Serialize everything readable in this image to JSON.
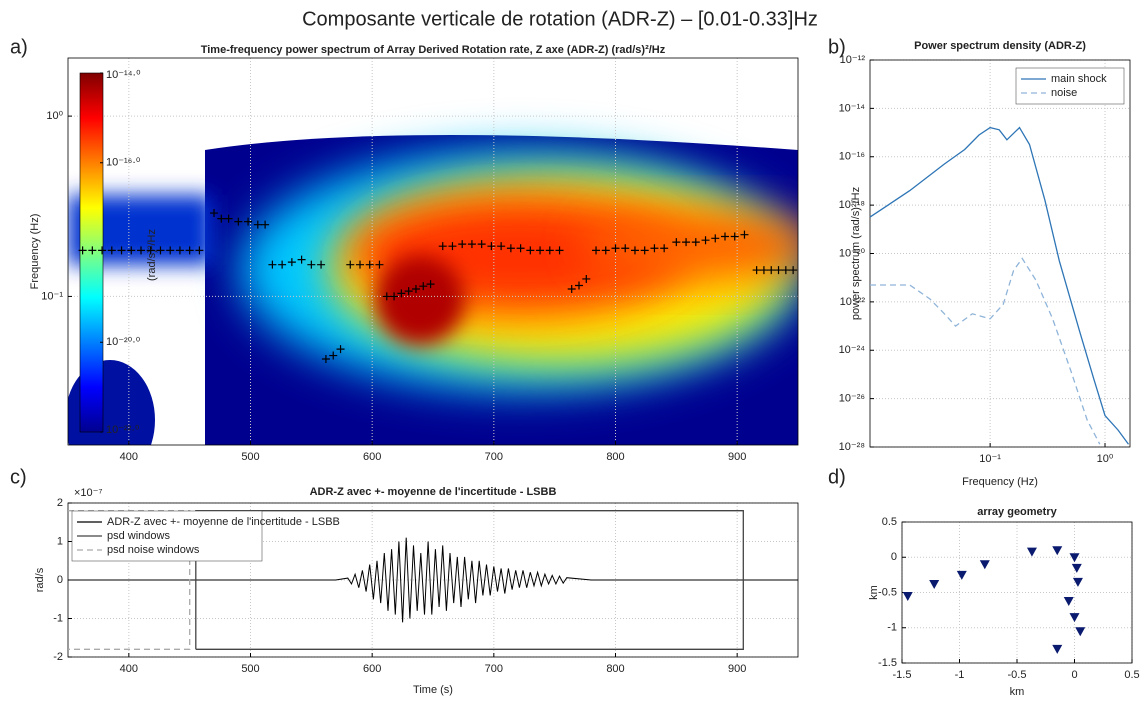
{
  "title": "Composante verticale de rotation (ADR-Z) – [0.01-0.33]Hz",
  "chart_data": [
    {
      "type": "heatmap",
      "panel_label": "a)",
      "title": "Time-frequency power spectrum of Array Derived Rotation rate, Z axe (ADR-Z) (rad/s)²/Hz",
      "ylabel": "Frequency (Hz)",
      "xlim": [
        350,
        950
      ],
      "xticks": [
        400,
        500,
        600,
        700,
        800,
        900
      ],
      "ylim": [
        0.015,
        2.1
      ],
      "ylog": true,
      "yticks": [
        {
          "value": 1,
          "label": "10⁰"
        },
        {
          "value": 0.1,
          "label": "10⁻¹"
        }
      ],
      "grid": true,
      "colorbar": {
        "label": "(rad/s)²/Hz",
        "clim": [
          1e-22,
          1e-14
        ],
        "log": true,
        "ticks": [
          {
            "value": 1e-14,
            "label": "10⁻¹⁴·⁰"
          },
          {
            "value": 1e-16,
            "label": "10⁻¹⁶·⁰"
          },
          {
            "value": 1e-20,
            "label": "10⁻²⁰·⁰"
          },
          {
            "value": 1e-22,
            "label": "10⁻²²·⁰"
          }
        ]
      },
      "series": [
        {
          "color": "#000000",
          "x": [
            362,
            370,
            378,
            386,
            394,
            402,
            410,
            418,
            426,
            434,
            442,
            450,
            458,
            470,
            476,
            482,
            490,
            498,
            506,
            512,
            518,
            526,
            534,
            542,
            550,
            558,
            562,
            568,
            574,
            582,
            590,
            598,
            606,
            612,
            618,
            624,
            630,
            636,
            642,
            648,
            658,
            666,
            674,
            682,
            690,
            698,
            706,
            714,
            722,
            730,
            738,
            746,
            754,
            764,
            770,
            776,
            784,
            792,
            800,
            808,
            816,
            824,
            832,
            840,
            850,
            858,
            866,
            874,
            882,
            890,
            898,
            906,
            916,
            922,
            928,
            934,
            940,
            946
          ],
          "values": [
            0.18,
            0.18,
            0.18,
            0.18,
            0.18,
            0.18,
            0.18,
            0.18,
            0.18,
            0.18,
            0.18,
            0.18,
            0.18,
            0.29,
            0.27,
            0.27,
            0.26,
            0.26,
            0.25,
            0.25,
            0.15,
            0.15,
            0.155,
            0.16,
            0.15,
            0.15,
            0.045,
            0.047,
            0.051,
            0.15,
            0.15,
            0.15,
            0.15,
            0.1,
            0.1,
            0.104,
            0.107,
            0.11,
            0.114,
            0.117,
            0.19,
            0.19,
            0.195,
            0.195,
            0.195,
            0.19,
            0.19,
            0.185,
            0.185,
            0.18,
            0.18,
            0.18,
            0.18,
            0.11,
            0.115,
            0.125,
            0.18,
            0.18,
            0.185,
            0.185,
            0.18,
            0.18,
            0.185,
            0.185,
            0.2,
            0.2,
            0.2,
            0.205,
            0.21,
            0.215,
            0.215,
            0.22,
            0.14,
            0.14,
            0.14,
            0.14,
            0.14,
            0.14
          ]
        }
      ]
    },
    {
      "type": "line",
      "panel_label": "b)",
      "title": "Power spectrum density (ADR-Z)",
      "xlabel": "Frequency (Hz)",
      "ylabel": "power spectrum (rad/s)²/Hz",
      "xlim": [
        0.009,
        1.65
      ],
      "xlog": true,
      "xticks": [
        {
          "value": 0.1,
          "label": "10⁻¹"
        },
        {
          "value": 1,
          "label": "10⁰"
        }
      ],
      "ylim": [
        1e-28,
        1e-12
      ],
      "ylog": true,
      "yticks": [
        {
          "value": 1e-12,
          "label": "10⁻¹²"
        },
        {
          "value": 1e-14,
          "label": "10⁻¹⁴"
        },
        {
          "value": 1e-16,
          "label": "10⁻¹⁶"
        },
        {
          "value": 1e-18,
          "label": "10⁻¹⁸"
        },
        {
          "value": 1e-20,
          "label": "10⁻²⁰"
        },
        {
          "value": 1e-22,
          "label": "10⁻²²"
        },
        {
          "value": 1e-24,
          "label": "10⁻²⁴"
        },
        {
          "value": 1e-26,
          "label": "10⁻²⁶"
        },
        {
          "value": 1e-28,
          "label": "10⁻²⁸"
        }
      ],
      "grid": true,
      "legend": "upper right",
      "series": [
        {
          "name": "main shock",
          "color": "#2e75b6",
          "linestyle": "solid",
          "x": [
            0.009,
            0.02,
            0.04,
            0.06,
            0.08,
            0.1,
            0.12,
            0.14,
            0.18,
            0.22,
            0.3,
            0.4,
            0.6,
            0.8,
            1,
            1.3,
            1.6
          ],
          "values": [
            3.2e-19,
            4e-18,
            5e-17,
            2e-16,
            7.9e-16,
            1.6e-15,
            1.3e-15,
            5e-16,
            1.6e-15,
            3.2e-16,
            1.6e-18,
            5e-21,
            6.3e-24,
            6.3e-26,
            2e-27,
            5e-28,
            1.3e-28
          ]
        },
        {
          "name": "noise",
          "color": "#8fb4d9",
          "linestyle": "dashed",
          "x": [
            0.009,
            0.02,
            0.03,
            0.04,
            0.05,
            0.07,
            0.1,
            0.13,
            0.16,
            0.19,
            0.25,
            0.35,
            0.5,
            0.7,
            0.9
          ],
          "values": [
            5e-22,
            5e-22,
            1.3e-22,
            3.2e-23,
            1e-23,
            3.2e-23,
            2e-23,
            7.9e-23,
            2e-21,
            6.3e-21,
            7.9e-22,
            2e-23,
            1.6e-25,
            1.3e-27,
            1.3e-28
          ]
        }
      ]
    },
    {
      "type": "line",
      "panel_label": "c)",
      "title": "ADR-Z avec +- moyenne de l'incertitude - LSBB",
      "xlabel": "Time (s)",
      "ylabel": "rad/s",
      "y_multiplier": "×10⁻⁷",
      "xlim": [
        350,
        950
      ],
      "xticks": [
        400,
        500,
        600,
        700,
        800,
        900
      ],
      "ylim": [
        -2e-07,
        2e-07
      ],
      "yticks": [
        {
          "value": 2e-07,
          "label": "2"
        },
        {
          "value": 1e-07,
          "label": "1"
        },
        {
          "value": 0,
          "label": "0"
        },
        {
          "value": -1e-07,
          "label": "-1"
        },
        {
          "value": -2e-07,
          "label": "-2"
        }
      ],
      "grid": true,
      "legend": "upper left",
      "series": [
        {
          "name": "ADR-Z avec +- moyenne de l'incertitude - LSBB",
          "color": "#000000",
          "linestyle": "solid",
          "x": [
            350,
            400,
            450,
            500,
            550,
            570,
            580,
            583,
            586,
            589,
            592,
            595,
            598,
            601,
            604,
            607,
            610,
            613,
            616,
            619,
            622,
            625,
            628,
            631,
            634,
            637,
            640,
            643,
            646,
            649,
            652,
            655,
            658,
            661,
            664,
            667,
            670,
            673,
            676,
            679,
            682,
            685,
            688,
            691,
            694,
            697,
            700,
            703,
            706,
            709,
            712,
            715,
            718,
            721,
            724,
            727,
            730,
            733,
            736,
            739,
            742,
            745,
            748,
            751,
            754,
            757,
            760,
            780,
            800,
            850,
            900,
            950
          ],
          "values": [
            0,
            0,
            0,
            0,
            0,
            0,
            5e-09,
            -1e-08,
            1.5e-08,
            -2e-08,
            2.5e-08,
            -3e-08,
            4e-08,
            -5e-08,
            5e-08,
            -6e-08,
            7e-08,
            -8e-08,
            8e-08,
            -9e-08,
            1e-07,
            -1.1e-07,
            1.1e-07,
            -1e-07,
            9e-08,
            -8e-08,
            7e-08,
            -9e-08,
            1e-07,
            -9e-08,
            8e-08,
            -7e-08,
            9e-08,
            -8e-08,
            7e-08,
            -6e-08,
            6e-08,
            -7e-08,
            6e-08,
            -5e-08,
            5e-08,
            -6e-08,
            5e-08,
            -4e-08,
            4e-08,
            -4e-08,
            3.5e-08,
            -3e-08,
            3e-08,
            -3.5e-08,
            3e-08,
            -2.5e-08,
            2.5e-08,
            -2e-08,
            2.5e-08,
            -2e-08,
            2e-08,
            -1.5e-08,
            2e-08,
            -1.5e-08,
            1.5e-08,
            -1e-08,
            1.2e-08,
            -1e-08,
            1e-08,
            -8e-09,
            6e-09,
            0,
            0,
            0,
            0,
            0
          ]
        },
        {
          "name": "psd windows",
          "color": "#444444",
          "linestyle": "solid",
          "x": [
            455,
            455,
            905,
            905,
            455
          ],
          "values": [
            -1.8e-07,
            1.8e-07,
            1.8e-07,
            -1.8e-07,
            -1.8e-07
          ]
        },
        {
          "name": "psd noise windows",
          "color": "#aaaaaa",
          "linestyle": "dashed",
          "x": [
            350,
            450,
            450,
            350
          ],
          "values": [
            1.8e-07,
            1.8e-07,
            -1.8e-07,
            -1.8e-07
          ]
        }
      ]
    },
    {
      "type": "scatter",
      "panel_label": "d)",
      "title": "array geometry",
      "xlabel": "km",
      "ylabel": "km",
      "xlim": [
        -1.5,
        0.5
      ],
      "xticks": [
        -1.5,
        -1,
        -0.5,
        0,
        0.5
      ],
      "ylim": [
        -1.5,
        0.5
      ],
      "yticks": [
        0.5,
        0,
        -0.5,
        -1,
        -1.5
      ],
      "grid": true,
      "series": [
        {
          "color": "#0a1a6e",
          "marker": "triangle-down",
          "x": [
            -1.45,
            -1.22,
            -0.98,
            -0.78,
            -0.37,
            -0.15,
            0,
            0.02,
            0.03,
            -0.05,
            0,
            0.05,
            -0.15
          ],
          "values": [
            -0.55,
            -0.38,
            -0.25,
            -0.1,
            0.08,
            0.1,
            0,
            -0.15,
            -0.35,
            -0.62,
            -0.85,
            -1.05,
            -1.3
          ]
        }
      ]
    }
  ]
}
